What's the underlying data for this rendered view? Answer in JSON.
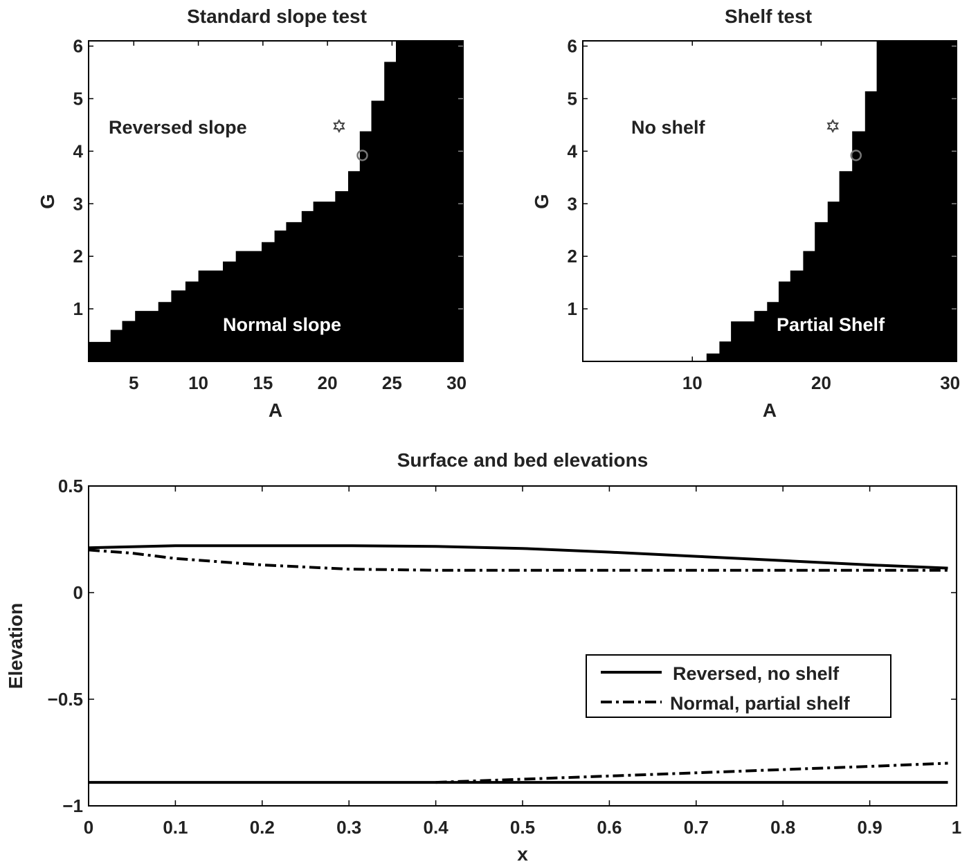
{
  "chart_data": [
    {
      "type": "heatmap",
      "title": "Standard slope test",
      "xlabel": "A",
      "ylabel": "G",
      "xlim": [
        1.5,
        30.5
      ],
      "ylim": [
        0,
        6.1
      ],
      "xticks": [
        5,
        10,
        15,
        20,
        25,
        30
      ],
      "yticks": [
        1,
        2,
        3,
        4,
        5,
        6
      ],
      "colors": {
        "upper": "#ffffff",
        "lower": "#000000"
      },
      "boundary_A": [
        1.5,
        3.2,
        4.1,
        5.1,
        6.9,
        7.9,
        9.0,
        10.0,
        11.9,
        12.9,
        14.9,
        15.9,
        16.8,
        18.0,
        18.9,
        20.6,
        21.6,
        22.5,
        23.4,
        24.4,
        25.3,
        30.5
      ],
      "boundary_G": [
        0.37,
        0.6,
        0.77,
        0.96,
        1.13,
        1.35,
        1.52,
        1.73,
        1.9,
        2.1,
        2.27,
        2.49,
        2.65,
        2.86,
        3.04,
        3.24,
        3.62,
        4.38,
        4.96,
        5.7,
        6.1
      ],
      "markers": [
        {
          "shape": "star",
          "A": 20.9,
          "G": 4.48
        },
        {
          "shape": "circle",
          "A": 22.7,
          "G": 3.92
        }
      ],
      "annotations": {
        "upper": "Reversed slope",
        "lower": "Normal slope"
      }
    },
    {
      "type": "heatmap",
      "title": "Shelf test",
      "xlabel": "A",
      "ylabel": "G",
      "xlim": [
        1.5,
        30.5
      ],
      "ylim": [
        0,
        6.1
      ],
      "xticks": [
        10,
        20,
        30
      ],
      "yticks": [
        1,
        2,
        3,
        4,
        5,
        6
      ],
      "colors": {
        "upper": "#ffffff",
        "lower": "#000000"
      },
      "boundary_A": [
        11.1,
        12.1,
        13.0,
        14.8,
        15.8,
        16.7,
        17.6,
        18.6,
        19.5,
        20.5,
        21.4,
        22.4,
        23.4,
        24.3,
        30.5
      ],
      "boundary_G": [
        0.15,
        0.38,
        0.76,
        0.96,
        1.13,
        1.52,
        1.73,
        2.1,
        2.65,
        3.04,
        3.62,
        4.38,
        5.14,
        6.1
      ],
      "markers": [
        {
          "shape": "star",
          "A": 20.9,
          "G": 4.48
        },
        {
          "shape": "circle",
          "A": 22.7,
          "G": 3.92
        }
      ],
      "annotations": {
        "upper": "No shelf",
        "lower": "Partial Shelf"
      }
    },
    {
      "type": "line",
      "title": "Surface and bed elevations",
      "xlabel": "x",
      "ylabel": "Elevation",
      "xlim": [
        0,
        1
      ],
      "ylim": [
        -1,
        0.5
      ],
      "xticks": [
        0,
        0.1,
        0.2,
        0.3,
        0.4,
        0.5,
        0.6,
        0.7,
        0.8,
        0.9,
        1
      ],
      "yticks": [
        -1,
        -0.5,
        0,
        0.5
      ],
      "ytick_labels": [
        "−1",
        "−0.5",
        "0",
        "0.5"
      ],
      "legend": "inside, lower-right",
      "series": [
        {
          "name": "Reversed, no shelf",
          "style": "solid",
          "surface": {
            "x": [
              0,
              0.1,
              0.2,
              0.3,
              0.4,
              0.5,
              0.6,
              0.7,
              0.8,
              0.9,
              0.99
            ],
            "y": [
              0.21,
              0.22,
              0.22,
              0.22,
              0.217,
              0.207,
              0.19,
              0.17,
              0.15,
              0.13,
              0.115
            ]
          },
          "bed": {
            "x": [
              0,
              0.99
            ],
            "y": [
              -0.89,
              -0.89
            ]
          }
        },
        {
          "name": "Normal, partial shelf",
          "style": "dashdot",
          "surface": {
            "x": [
              0,
              0.05,
              0.1,
              0.2,
              0.3,
              0.4,
              0.5,
              0.7,
              0.9,
              0.99
            ],
            "y": [
              0.2,
              0.185,
              0.16,
              0.13,
              0.11,
              0.105,
              0.105,
              0.105,
              0.105,
              0.105
            ]
          },
          "bed": {
            "x": [
              0.4,
              0.5,
              0.6,
              0.7,
              0.8,
              0.9,
              0.99
            ],
            "y": [
              -0.89,
              -0.875,
              -0.86,
              -0.845,
              -0.83,
              -0.815,
              -0.8
            ]
          }
        }
      ]
    }
  ]
}
